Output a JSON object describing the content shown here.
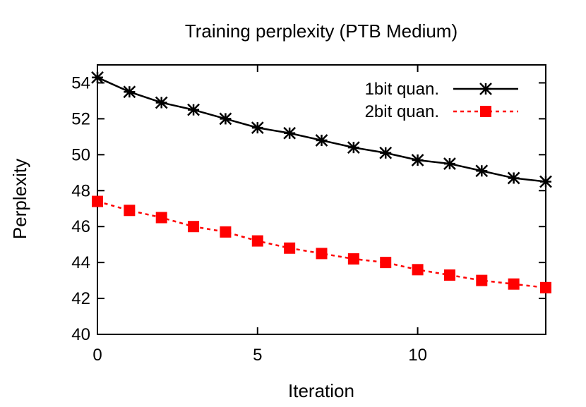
{
  "chart_data": {
    "type": "line",
    "title": "Training perplexity (PTB Medium)",
    "xlabel": "Iteration",
    "ylabel": "Perplexity",
    "xlim": [
      0,
      14
    ],
    "ylim": [
      40,
      55
    ],
    "xticks": [
      0,
      5,
      10
    ],
    "yticks": [
      40,
      42,
      44,
      46,
      48,
      50,
      52,
      54
    ],
    "grid": false,
    "legend_position": "top-right",
    "x": [
      0,
      1,
      2,
      3,
      4,
      5,
      6,
      7,
      8,
      9,
      10,
      11,
      12,
      13,
      14
    ],
    "series": [
      {
        "name": "1bit quan.",
        "color": "#000000",
        "line": "solid",
        "marker": "asterisk",
        "values": [
          54.3,
          53.5,
          52.9,
          52.5,
          52.0,
          51.5,
          51.2,
          50.8,
          50.4,
          50.1,
          49.7,
          49.5,
          49.1,
          48.7,
          48.5
        ]
      },
      {
        "name": "2bit quan.",
        "color": "#ff0000",
        "line": "dashed",
        "marker": "square",
        "values": [
          47.4,
          46.9,
          46.5,
          46.0,
          45.7,
          45.2,
          44.8,
          44.5,
          44.2,
          44.0,
          43.6,
          43.3,
          43.0,
          42.8,
          42.6
        ]
      }
    ]
  }
}
